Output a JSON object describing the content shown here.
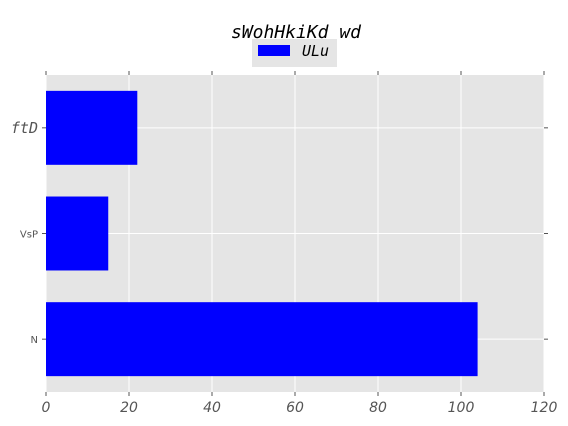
{
  "chart_data": {
    "type": "bar",
    "orientation": "horizontal",
    "title": "sWohHkiKd wd",
    "categories": [
      "N",
      "VsP",
      "ftD"
    ],
    "series": [
      {
        "name": "ULu",
        "values": [
          104,
          15,
          22
        ],
        "color": "#0000ff"
      }
    ],
    "xlim": [
      0,
      120
    ],
    "xticks": [
      0,
      20,
      40,
      60,
      80,
      100,
      120
    ],
    "xlabel": "",
    "ylabel": "",
    "grid": true,
    "legend": "top-center",
    "background": "#e5e5e5"
  }
}
